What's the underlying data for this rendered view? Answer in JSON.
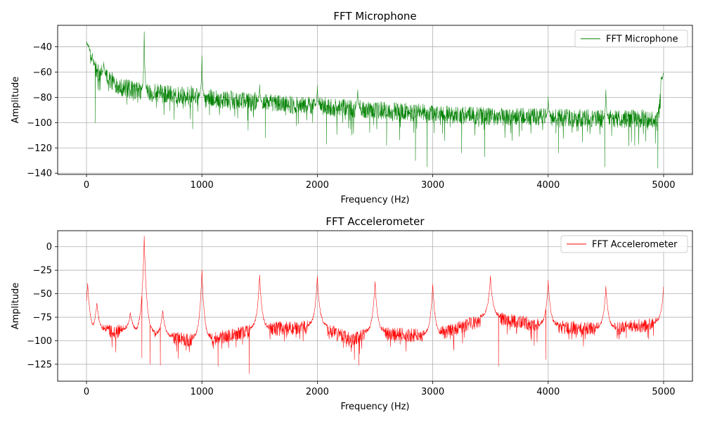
{
  "chart_data": [
    {
      "type": "line",
      "title": "FFT Microphone",
      "xlabel": "Frequency (Hz)",
      "ylabel": "Amplitude",
      "xlim": [
        -250,
        5250
      ],
      "ylim": [
        -141,
        -23
      ],
      "xticks": [
        0,
        1000,
        2000,
        3000,
        4000,
        5000
      ],
      "yticks": [
        -140,
        -120,
        -100,
        -80,
        -60,
        -40
      ],
      "grid": true,
      "legend_position": "upper right",
      "series": [
        {
          "name": "FFT Microphone",
          "color": "#008000",
          "baseline": [
            [
              0,
              -40
            ],
            [
              50,
              -55
            ],
            [
              100,
              -60
            ],
            [
              200,
              -66
            ],
            [
              300,
              -72
            ],
            [
              500,
              -76
            ],
            [
              700,
              -77
            ],
            [
              1000,
              -80
            ],
            [
              1500,
              -84
            ],
            [
              2000,
              -87
            ],
            [
              2500,
              -90
            ],
            [
              3000,
              -93
            ],
            [
              3500,
              -95
            ],
            [
              4000,
              -96
            ],
            [
              4500,
              -97
            ],
            [
              4950,
              -97
            ],
            [
              5000,
              -65
            ]
          ],
          "noise": 9,
          "peaks": [
            [
              0,
              -36
            ],
            [
              10,
              -38
            ],
            [
              50,
              -45
            ],
            [
              150,
              -52
            ],
            [
              500,
              -28
            ],
            [
              1000,
              -47
            ],
            [
              1500,
              -70
            ],
            [
              2000,
              -72
            ],
            [
              2350,
              -74
            ],
            [
              4000,
              -80
            ],
            [
              4500,
              -74
            ],
            [
              5000,
              -61
            ]
          ],
          "dips": [
            [
              75,
              -100
            ],
            [
              920,
              -105
            ],
            [
              1400,
              -106
            ],
            [
              1550,
              -112
            ],
            [
              2080,
              -117
            ],
            [
              2600,
              -118
            ],
            [
              2850,
              -130
            ],
            [
              2950,
              -135
            ],
            [
              3250,
              -124
            ],
            [
              3450,
              -127
            ],
            [
              4090,
              -124
            ],
            [
              4490,
              -135
            ],
            [
              4950,
              -136
            ]
          ]
        }
      ]
    },
    {
      "type": "line",
      "title": "FFT Accelerometer",
      "xlabel": "Frequency (Hz)",
      "ylabel": "Amplitude",
      "xlim": [
        -250,
        5250
      ],
      "ylim": [
        -143,
        17
      ],
      "xticks": [
        0,
        1000,
        2000,
        3000,
        4000,
        5000
      ],
      "yticks": [
        -125,
        -100,
        -75,
        -50,
        -25,
        0
      ],
      "grid": true,
      "legend_position": "upper right",
      "series": [
        {
          "name": "FFT Accelerometer",
          "color": "#ff0000",
          "baseline": [
            [
              0,
              -90
            ],
            [
              400,
              -90
            ],
            [
              700,
              -97
            ],
            [
              1000,
              -100
            ],
            [
              1500,
              -88
            ],
            [
              2000,
              -85
            ],
            [
              2300,
              -98
            ],
            [
              2500,
              -92
            ],
            [
              3000,
              -95
            ],
            [
              3500,
              -75
            ],
            [
              4000,
              -85
            ],
            [
              4500,
              -88
            ],
            [
              5000,
              -82
            ]
          ],
          "noise": 9,
          "peaks": [
            [
              10,
              -39
            ],
            [
              90,
              -60
            ],
            [
              380,
              -70
            ],
            [
              500,
              10
            ],
            [
              660,
              -68
            ],
            [
              1000,
              -25
            ],
            [
              1500,
              -31
            ],
            [
              2000,
              -32
            ],
            [
              2500,
              -37
            ],
            [
              3000,
              -40
            ],
            [
              3500,
              -32
            ],
            [
              4000,
              -37
            ],
            [
              4500,
              -43
            ],
            [
              5000,
              -44
            ]
          ],
          "dips": [
            [
              480,
              -118
            ],
            [
              550,
              -125
            ],
            [
              640,
              -126
            ],
            [
              1140,
              -127
            ],
            [
              1410,
              -135
            ],
            [
              2360,
              -126
            ],
            [
              3570,
              -127
            ],
            [
              3980,
              -120
            ]
          ]
        }
      ]
    }
  ]
}
